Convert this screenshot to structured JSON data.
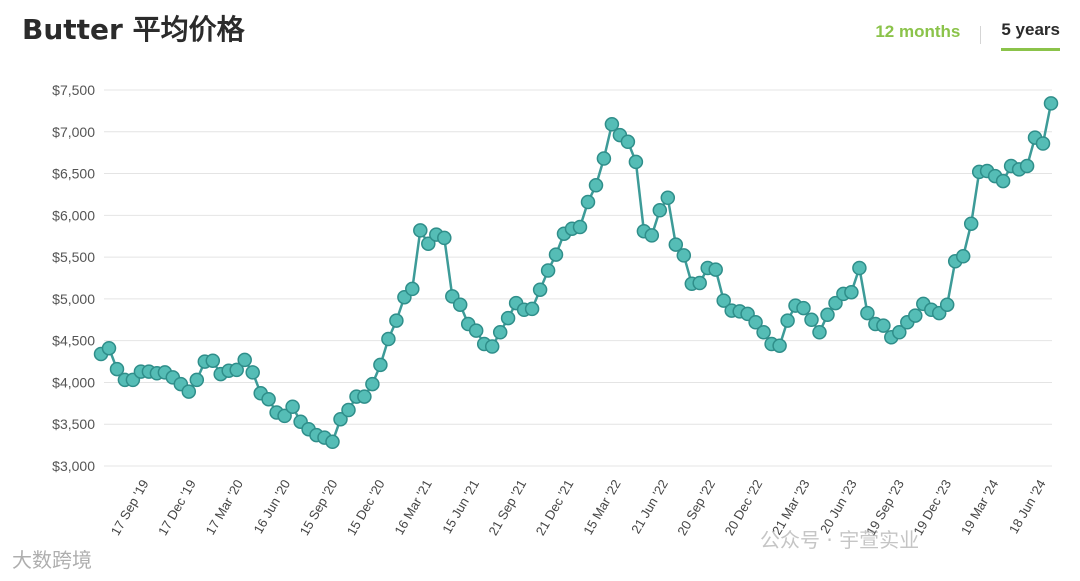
{
  "header": {
    "title": "Butter 平均价格",
    "range_12m": "12 months",
    "range_5y": "5 years"
  },
  "watermarks": {
    "left": "大数跨境",
    "right": "公众号 · 宇萱实业"
  },
  "colors": {
    "accent": "#8bc34a",
    "line": "#3d9b98",
    "marker": "#55bdb6"
  },
  "chart_data": {
    "type": "line",
    "title": "",
    "xlabel": "",
    "ylabel": "",
    "ylim": [
      3000,
      7500
    ],
    "y_ticks": [
      3000,
      3500,
      4000,
      4500,
      5000,
      5500,
      6000,
      6500,
      7000,
      7500
    ],
    "y_tick_labels": [
      "$3,000",
      "$3,500",
      "$4,000",
      "$4,500",
      "$5,000",
      "$5,500",
      "$6,000",
      "$6,500",
      "$7,000",
      "$7,500"
    ],
    "x_tick_labels": [
      "17 Sep '19",
      "17 Dec '19",
      "17 Mar '20",
      "16 Jun '20",
      "15 Sep '20",
      "15 Dec '20",
      "16 Mar '21",
      "15 Jun '21",
      "21 Sep '21",
      "21 Dec '21",
      "15 Mar '22",
      "21 Jun '22",
      "20 Sep '22",
      "20 Dec '22",
      "21 Mar '23",
      "20 Jun '23",
      "19 Sep '23",
      "19 Dec '23",
      "19 Mar '24",
      "18 Jun '24"
    ],
    "grid": true,
    "legend": "none",
    "values": [
      4340,
      4410,
      4160,
      4030,
      4030,
      4130,
      4130,
      4110,
      4120,
      4060,
      3980,
      3890,
      4030,
      4250,
      4260,
      4100,
      4140,
      4150,
      4270,
      4120,
      3870,
      3800,
      3640,
      3600,
      3710,
      3530,
      3440,
      3370,
      3340,
      3290,
      3560,
      3670,
      3830,
      3830,
      3980,
      4210,
      4520,
      4740,
      5020,
      5120,
      5820,
      5660,
      5770,
      5730,
      5030,
      4930,
      4700,
      4620,
      4460,
      4430,
      4600,
      4770,
      4950,
      4870,
      4880,
      5110,
      5340,
      5530,
      5780,
      5840,
      5860,
      6160,
      6360,
      6680,
      7090,
      6960,
      6880,
      6640,
      5810,
      5760,
      6060,
      6210,
      5650,
      5520,
      5180,
      5190,
      5370,
      5350,
      4980,
      4860,
      4850,
      4820,
      4720,
      4600,
      4460,
      4440,
      4740,
      4920,
      4890,
      4750,
      4600,
      4810,
      4950,
      5060,
      5080,
      5370,
      4830,
      4700,
      4680,
      4540,
      4600,
      4720,
      4800,
      4940,
      4870,
      4830,
      4930,
      5450,
      5510,
      5900,
      6520,
      6530,
      6470,
      6410,
      6590,
      6550,
      6590,
      6930,
      6860,
      7340
    ]
  }
}
